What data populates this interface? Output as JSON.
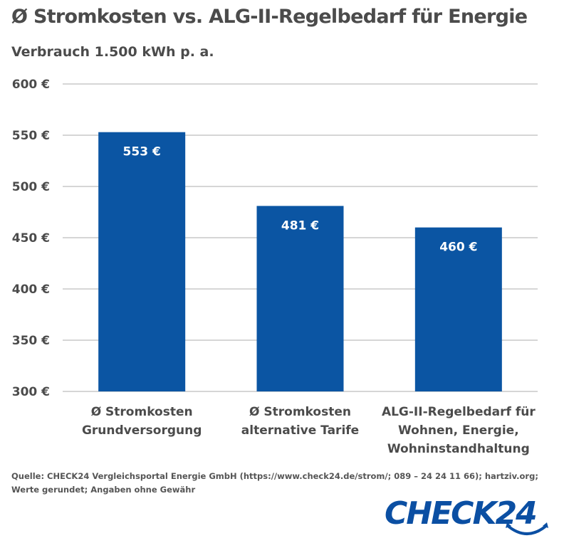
{
  "header": {
    "title": "Ø Stromkosten vs. ALG-II-Regelbedarf für Energie",
    "subtitle": "Verbrauch 1.500 kWh p. a."
  },
  "chart_data": {
    "type": "bar",
    "categories": [
      [
        "Ø Stromkosten",
        "Grundversorgung"
      ],
      [
        "Ø Stromkosten",
        "alternative Tarife"
      ],
      [
        "ALG-II-Regelbedarf für",
        "Wohnen, Energie,",
        "Wohninstandhaltung"
      ]
    ],
    "values": [
      553,
      481,
      460
    ],
    "value_labels": [
      "553 €",
      "481 €",
      "460 €"
    ],
    "ylim": [
      300,
      600
    ],
    "yticks": [
      300,
      350,
      400,
      450,
      500,
      550,
      600
    ],
    "ytick_labels": [
      "300 €",
      "350 €",
      "400 €",
      "450 €",
      "500 €",
      "550 €",
      "600 €"
    ],
    "grid": true,
    "bar_color": "#0b55a3"
  },
  "footer": {
    "source": "Quelle: CHECK24 Vergleichsportal Energie GmbH (https://www.check24.de/strom/; 089 – 24 24 11 66); hartziv.org; Werte gerundet; Angaben ohne Gewähr",
    "logo_text": "CHECK24",
    "logo_color": "#0b4fa3"
  }
}
